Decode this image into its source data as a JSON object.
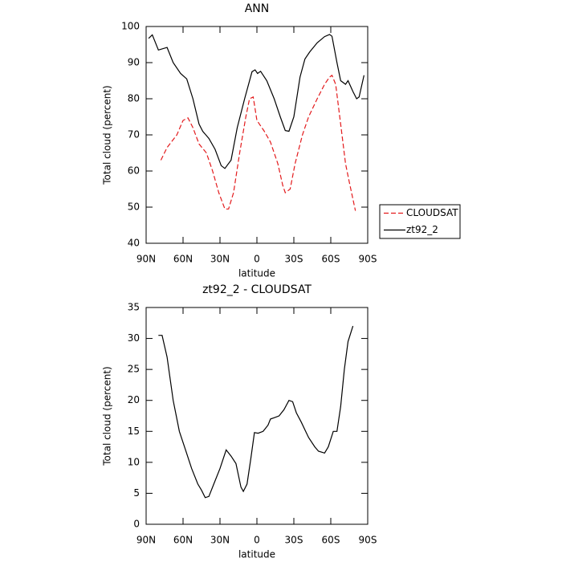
{
  "chart_data": [
    {
      "type": "line",
      "title": "ANN",
      "xlabel": "latitude",
      "ylabel": "Total cloud (percent)",
      "xlim": [
        90,
        -90
      ],
      "xticks": [
        {
          "value": 90,
          "label": "90N"
        },
        {
          "value": 60,
          "label": "60N"
        },
        {
          "value": 30,
          "label": "30N"
        },
        0,
        {
          "value": -30,
          "label": "30S"
        },
        {
          "value": -60,
          "label": "60S"
        },
        {
          "value": -90,
          "label": "90S"
        }
      ],
      "ylim": [
        40,
        100
      ],
      "yticks": [
        40,
        50,
        60,
        70,
        80,
        90,
        100
      ],
      "legend": "right",
      "series": [
        {
          "name": "CLOUDSAT",
          "color": "#e31a1c",
          "line_style": "dashed",
          "x": [
            78,
            73,
            65,
            60,
            56,
            52,
            47,
            41,
            36,
            31,
            26,
            23,
            19,
            14,
            9,
            6,
            3,
            0,
            -6,
            -11,
            -17,
            -21,
            -23,
            -27,
            -31,
            -37,
            -42,
            -49,
            -55,
            -59,
            -61,
            -64,
            -68,
            -72,
            -75,
            -80
          ],
          "values": [
            63,
            66.5,
            70,
            74,
            74.7,
            72,
            67.5,
            65,
            60,
            54,
            49.5,
            49.5,
            54,
            65,
            75,
            80,
            80.5,
            74,
            71,
            68,
            62,
            56,
            54,
            55,
            62,
            70,
            75,
            80,
            84,
            86,
            86.5,
            84,
            73,
            62,
            57,
            49
          ]
        },
        {
          "name": "zt92_2",
          "color": "#000000",
          "line_style": "solid",
          "x": [
            88,
            85,
            80,
            73,
            68,
            62,
            57,
            52,
            47,
            44,
            39,
            34,
            29,
            26,
            21,
            16,
            10,
            4,
            1.5,
            -0.5,
            -3,
            -8,
            -14,
            -19,
            -23,
            -26,
            -30,
            -35,
            -39,
            -43,
            -49,
            -55,
            -59,
            -61,
            -65,
            -68,
            -72,
            -74,
            -78,
            -81,
            -83,
            -87
          ],
          "values": [
            96.7,
            97.7,
            93.5,
            94.2,
            90,
            87,
            85.5,
            80,
            73,
            71,
            69,
            66,
            61.5,
            60.7,
            63,
            72,
            80,
            87.5,
            88,
            87,
            87.6,
            85,
            80,
            75,
            71.2,
            71,
            75,
            86,
            91,
            93,
            95.5,
            97.2,
            97.8,
            97.3,
            90,
            85,
            84,
            85,
            82,
            80,
            80.5,
            86.5
          ]
        }
      ]
    },
    {
      "type": "line",
      "title": "zt92_2 - CLOUDSAT",
      "xlabel": "latitude",
      "ylabel": "Total cloud (percent)",
      "xlim": [
        90,
        -90
      ],
      "xticks": [
        {
          "value": 90,
          "label": "90N"
        },
        {
          "value": 60,
          "label": "60N"
        },
        {
          "value": 30,
          "label": "30N"
        },
        0,
        {
          "value": -30,
          "label": "30S"
        },
        {
          "value": -60,
          "label": "60S"
        },
        {
          "value": -90,
          "label": "90S"
        }
      ],
      "ylim": [
        0,
        35
      ],
      "yticks": [
        0,
        5,
        10,
        15,
        20,
        25,
        30,
        35
      ],
      "color": "#000000",
      "x": [
        80,
        77,
        73,
        68,
        63,
        58,
        53,
        48,
        45,
        42,
        39,
        35,
        30,
        25,
        21,
        17,
        13,
        11,
        8,
        5,
        2,
        -1,
        -5,
        -9,
        -11,
        -14,
        -18,
        -22,
        -26,
        -29,
        -32,
        -36,
        -42,
        -47,
        -50,
        -55,
        -58,
        -62,
        -65,
        -68,
        -71,
        -74,
        -78
      ],
      "values": [
        30.5,
        30.5,
        27,
        20,
        15,
        12,
        9,
        6.5,
        5.5,
        4.3,
        4.5,
        6.5,
        9,
        12,
        11,
        9.8,
        6,
        5.3,
        6.5,
        10.5,
        14.8,
        14.7,
        15,
        16,
        17,
        17.2,
        17.5,
        18.5,
        20,
        19.8,
        18,
        16.5,
        14,
        12.5,
        11.8,
        11.5,
        12.5,
        15,
        15,
        19,
        25,
        29.5,
        32
      ]
    }
  ]
}
